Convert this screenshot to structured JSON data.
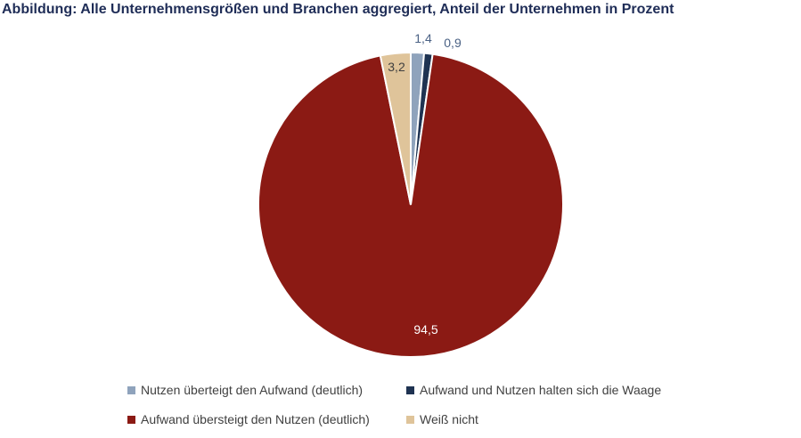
{
  "chart_data": {
    "type": "pie",
    "title": "Abbildung: Alle Unternehmensgrößen und Branchen aggregiert, Anteil der Unternehmen in Prozent",
    "categories": [
      "Nutzen überteigt den Aufwand (deutlich)",
      "Aufwand und Nutzen halten sich die Waage",
      "Aufwand übersteigt den Nutzen (deutlich)",
      "Weiß nicht"
    ],
    "values": [
      1.4,
      0.9,
      94.5,
      3.2
    ],
    "value_labels": [
      "1,4",
      "0,9",
      "94,5",
      "3,2"
    ],
    "colors": [
      "#8fa3bc",
      "#1f3352",
      "#8b1a14",
      "#dfc49a"
    ],
    "label_colors": [
      "#4a6184",
      "#4a6184",
      "#ffffff",
      "#404040"
    ],
    "start_angle_deg": 0,
    "direction": "clockwise",
    "legend_position": "bottom"
  }
}
